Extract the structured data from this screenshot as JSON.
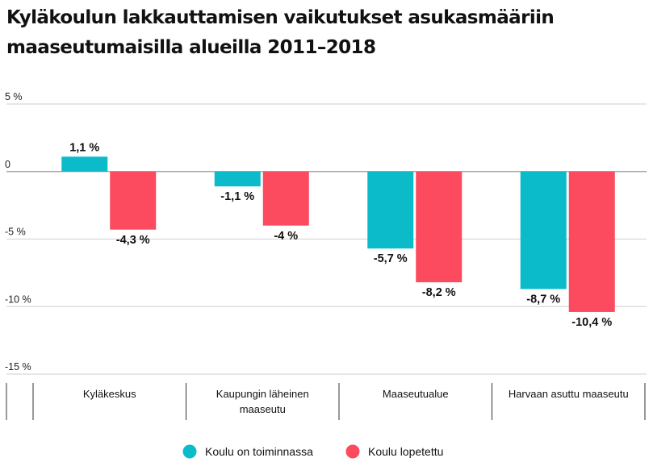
{
  "chart_data": {
    "type": "bar",
    "title": "Kyläkoulun lakkauttamisen vaikutukset asukasmääriin maaseutumaisilla alueilla 2011–2018",
    "xlabel": "",
    "ylabel": "",
    "ylim": [
      -15,
      5
    ],
    "yticks": [
      5,
      0,
      -5,
      -10,
      -15
    ],
    "ytick_labels": [
      "5 %",
      "0",
      "-5 %",
      "-10 %",
      "-15 %"
    ],
    "categories": [
      [
        "Kyläkeskus"
      ],
      [
        "Kaupungin läheinen",
        "maaseutu"
      ],
      [
        "Maaseutualue"
      ],
      [
        "Harvaan asuttu maaseutu"
      ]
    ],
    "series": [
      {
        "name": "Koulu on toiminnassa",
        "color": "#0bbbc9",
        "values": [
          1.1,
          -1.1,
          -5.7,
          -8.7
        ],
        "labels": [
          "1,1 %",
          "-1,1 %",
          "-5,7 %",
          "-8,7 %"
        ]
      },
      {
        "name": "Koulu lopetettu",
        "color": "#fc4a5e",
        "values": [
          -4.3,
          -4,
          -8.2,
          -10.4
        ],
        "labels": [
          "-4,3 %",
          "-4 %",
          "-8,2 %",
          "-10,4 %"
        ]
      }
    ],
    "grid": true,
    "legend": "bottom-center"
  }
}
